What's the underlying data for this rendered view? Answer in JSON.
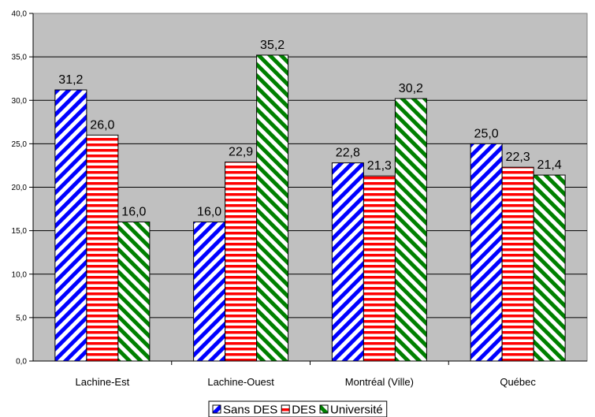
{
  "chart_data": {
    "type": "bar",
    "categories": [
      "Lachine-Est",
      "Lachine-Ouest",
      "Montréal (Ville)",
      "Québec"
    ],
    "series": [
      {
        "name": "Sans DES",
        "values": [
          31.2,
          16.0,
          22.8,
          25.0
        ],
        "color": "#0000ff",
        "pattern": "diagonal-up"
      },
      {
        "name": "DES",
        "values": [
          26.0,
          22.9,
          21.3,
          22.3
        ],
        "color": "#ff0000",
        "pattern": "horizontal"
      },
      {
        "name": "Université",
        "values": [
          16.0,
          35.2,
          30.2,
          21.4
        ],
        "color": "#008000",
        "pattern": "diagonal-down"
      }
    ],
    "data_labels": [
      [
        "31,2",
        "16,0",
        "22,8",
        "25,0"
      ],
      [
        "26,0",
        "22,9",
        "21,3",
        "22,3"
      ],
      [
        "16,0",
        "35,2",
        "30,2",
        "21,4"
      ]
    ],
    "y_ticks": [
      "0,0",
      "5,0",
      "10,0",
      "15,0",
      "20,0",
      "25,0",
      "30,0",
      "35,0",
      "40,0"
    ],
    "ylim": [
      0,
      40
    ],
    "y_step": 5,
    "grid": true,
    "legend_position": "bottom",
    "plot_background": "#c0c0c0"
  }
}
